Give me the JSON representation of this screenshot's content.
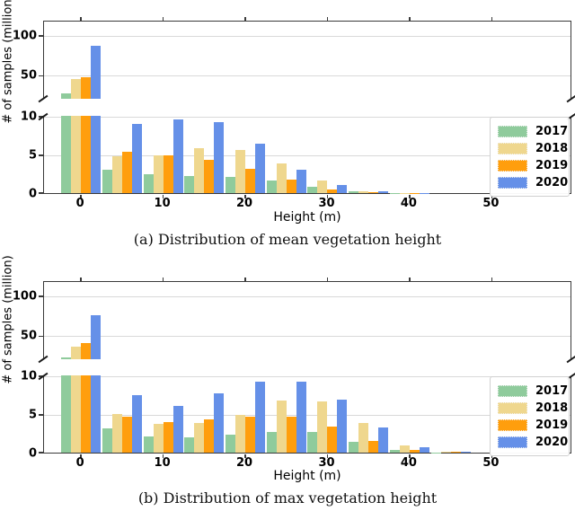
{
  "figure": {
    "background": "#ffffff"
  },
  "chart_data": [
    {
      "type": "bar",
      "caption": "(a) Distribution of mean vegetation height",
      "xlabel": "Height (m)",
      "ylabel": "# of samples (million)",
      "bin_width_m": 5,
      "categories": [
        0,
        5,
        10,
        15,
        20,
        25,
        30,
        35,
        40,
        45
      ],
      "series": [
        {
          "name": "2017",
          "color": "#8fcb9c",
          "values": [
            27,
            3.0,
            2.4,
            2.2,
            2.1,
            1.6,
            0.8,
            0.2,
            0.05,
            0
          ]
        },
        {
          "name": "2018",
          "color": "#efd78e",
          "values": [
            45,
            4.8,
            4.9,
            5.8,
            5.6,
            3.9,
            1.6,
            0.25,
            0.05,
            0
          ]
        },
        {
          "name": "2019",
          "color": "#ff9e0d",
          "values": [
            47,
            5.4,
            4.9,
            4.3,
            3.2,
            1.7,
            0.5,
            0.12,
            0.03,
            0
          ]
        },
        {
          "name": "2020",
          "color": "#6590e8",
          "values": [
            86,
            9.0,
            9.5,
            9.2,
            6.4,
            3.0,
            1.05,
            0.25,
            0.05,
            0
          ]
        }
      ],
      "x_ticks": [
        0,
        10,
        20,
        30,
        40,
        50
      ],
      "xlim": [
        -4.5,
        59.8
      ],
      "broken_y_axis": {
        "upper": {
          "ylim": [
            20,
            118
          ],
          "ticks": [
            50,
            100
          ]
        },
        "lower": {
          "ylim": [
            0,
            10
          ],
          "ticks": [
            0,
            5,
            10
          ]
        }
      },
      "grid": true,
      "legend": {
        "position": "center-right",
        "labels": [
          "2017",
          "2018",
          "2019",
          "2020"
        ]
      }
    },
    {
      "type": "bar",
      "caption": "(b) Distribution of max vegetation height",
      "xlabel": "Height (m)",
      "ylabel": "# of samples (million)",
      "bin_width_m": 5,
      "categories": [
        0,
        5,
        10,
        15,
        20,
        25,
        30,
        35,
        40,
        45
      ],
      "series": [
        {
          "name": "2017",
          "color": "#8fcb9c",
          "values": [
            22,
            3.2,
            2.1,
            2.0,
            2.3,
            2.7,
            2.7,
            1.45,
            0.4,
            0.05
          ]
        },
        {
          "name": "2018",
          "color": "#efd78e",
          "values": [
            36,
            5.0,
            3.7,
            3.9,
            4.9,
            6.7,
            6.6,
            3.8,
            0.9,
            0.12
          ]
        },
        {
          "name": "2019",
          "color": "#ff9e0d",
          "values": [
            40,
            4.7,
            4.0,
            4.3,
            4.7,
            4.7,
            3.4,
            1.55,
            0.4,
            0.08
          ]
        },
        {
          "name": "2020",
          "color": "#6590e8",
          "values": [
            75,
            7.4,
            6.0,
            7.7,
            9.2,
            9.2,
            6.85,
            3.3,
            0.75,
            0.1
          ]
        }
      ],
      "x_ticks": [
        0,
        10,
        20,
        30,
        40,
        50
      ],
      "xlim": [
        -4.5,
        59.8
      ],
      "broken_y_axis": {
        "upper": {
          "ylim": [
            20,
            118
          ],
          "ticks": [
            50,
            100
          ]
        },
        "lower": {
          "ylim": [
            0,
            10
          ],
          "ticks": [
            0,
            5,
            10
          ]
        }
      },
      "grid": true,
      "legend": {
        "position": "center-right",
        "labels": [
          "2017",
          "2018",
          "2019",
          "2020"
        ]
      }
    }
  ]
}
